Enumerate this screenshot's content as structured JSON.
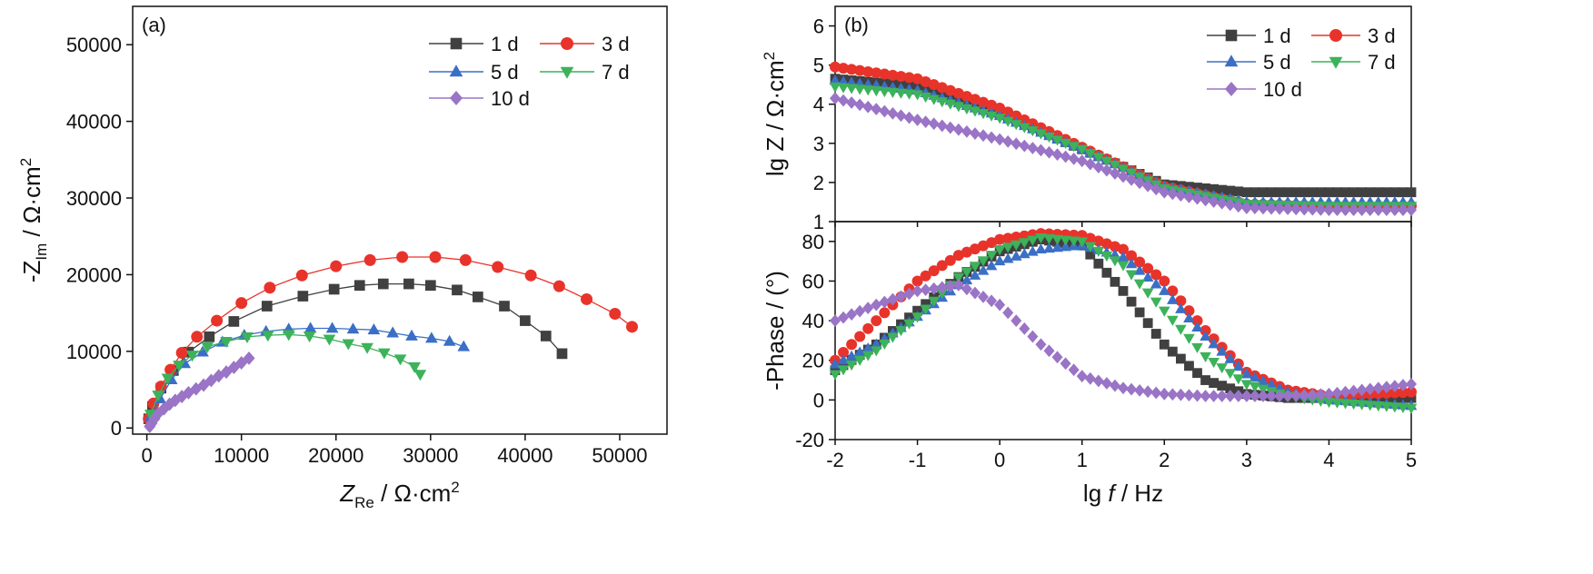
{
  "colors": {
    "1 d": "#404040",
    "3 d": "#e8332b",
    "5 d": "#3b6fc6",
    "7 d": "#3cb25a",
    "10 d": "#9a74c6"
  },
  "chart_data": [
    {
      "panel": "(a)",
      "type": "scatter",
      "xlabel": "Z_Re / Ω·cm^2",
      "ylabel": "-Z_Im / Ω·cm^2",
      "xlim": [
        -1500,
        55000
      ],
      "ylim": [
        -800,
        55000
      ],
      "xticks": [
        "0",
        "10000",
        "20000",
        "30000",
        "40000",
        "50000"
      ],
      "yticks": [
        "0",
        "10000",
        "20000",
        "30000",
        "40000",
        "50000"
      ],
      "legend": "top-right, 3 columns",
      "series": [
        {
          "name": "1 d",
          "marker": "square",
          "fit_line": true,
          "x": [
            200,
            600,
            1500,
            2800,
            4400,
            6600,
            9200,
            12700,
            16500,
            19800,
            22500,
            25000,
            27700,
            30000,
            32800,
            35000,
            37800,
            40000,
            42200,
            43900
          ],
          "y": [
            1200,
            2800,
            5200,
            7500,
            9900,
            11900,
            13900,
            15900,
            17200,
            18100,
            18600,
            18800,
            18800,
            18600,
            18000,
            17100,
            15900,
            14000,
            12000,
            9700
          ]
        },
        {
          "name": "3 d",
          "marker": "circle",
          "fit_line": true,
          "x": [
            200,
            700,
            1500,
            2500,
            3700,
            5300,
            7400,
            10000,
            13000,
            16400,
            20000,
            23600,
            27000,
            30500,
            33700,
            37100,
            40600,
            43600,
            46500,
            49500,
            51300
          ],
          "y": [
            1200,
            3200,
            5400,
            7600,
            9800,
            11900,
            14000,
            16300,
            18300,
            19900,
            21100,
            21900,
            22300,
            22300,
            21900,
            21000,
            19900,
            18500,
            16800,
            14900,
            13200
          ]
        },
        {
          "name": "5 d",
          "marker": "triangle-up",
          "fit_line": true,
          "x": [
            400,
            1400,
            2600,
            4000,
            5900,
            8000,
            10300,
            12600,
            15000,
            17300,
            19600,
            21800,
            24000,
            26000,
            28000,
            30100,
            32000,
            33500
          ],
          "y": [
            1500,
            3800,
            6300,
            8400,
            9900,
            11200,
            12100,
            12600,
            12900,
            13000,
            13000,
            12900,
            12800,
            12400,
            12000,
            11700,
            11300,
            10600
          ]
        },
        {
          "name": "7 d",
          "marker": "triangle-down",
          "fit_line": true,
          "x": [
            400,
            1200,
            2200,
            3400,
            4800,
            6400,
            8400,
            10600,
            12800,
            15000,
            17200,
            19300,
            21300,
            23300,
            25100,
            26800,
            28300,
            28900
          ],
          "y": [
            1800,
            4300,
            6500,
            8200,
            9500,
            10600,
            11300,
            11900,
            12100,
            12200,
            12000,
            11600,
            11000,
            10500,
            9800,
            9000,
            8000,
            7000
          ]
        },
        {
          "name": "10 d",
          "marker": "diamond",
          "fit_line": false,
          "x": [
            300,
            500,
            800,
            1200,
            1800,
            2400,
            3000,
            3700,
            4400,
            5200,
            6000,
            6800,
            7600,
            8400,
            9200,
            10000,
            10800
          ],
          "y": [
            200,
            600,
            1200,
            1900,
            2500,
            3100,
            3600,
            4100,
            4600,
            5100,
            5600,
            6200,
            6800,
            7300,
            7900,
            8500,
            9100
          ]
        }
      ]
    },
    {
      "panel": "(b)",
      "type": "scatter",
      "xlabel": "lg f / Hz",
      "x_ticks": [
        "-2",
        "-1",
        "0",
        "1",
        "2",
        "3",
        "4",
        "5"
      ],
      "subplots": [
        {
          "ylabel": "lg Z / Ω·cm^2",
          "xlim": [
            -2,
            5
          ],
          "ylim": [
            1,
            6.5
          ],
          "yticks": [
            "1",
            "2",
            "3",
            "4",
            "5",
            "6"
          ],
          "legend": "top-right, 2 columns",
          "series": [
            {
              "name": "1 d",
              "marker": "square",
              "x": [
                -2,
                -1,
                0,
                1,
                2,
                3,
                4,
                5
              ],
              "y": [
                4.65,
                4.45,
                3.75,
                2.85,
                1.95,
                1.75,
                1.75,
                1.75
              ]
            },
            {
              "name": "3 d",
              "marker": "circle",
              "x": [
                -2,
                -1,
                0,
                1,
                2,
                3,
                4,
                5
              ],
              "y": [
                4.95,
                4.65,
                3.9,
                2.9,
                1.9,
                1.45,
                1.4,
                1.4
              ]
            },
            {
              "name": "5 d",
              "marker": "triangle-up",
              "x": [
                -2,
                -1,
                0,
                1,
                2,
                3,
                4,
                5
              ],
              "y": [
                4.6,
                4.35,
                3.7,
                2.85,
                1.9,
                1.5,
                1.5,
                1.5
              ]
            },
            {
              "name": "7 d",
              "marker": "triangle-down",
              "x": [
                -2,
                -1,
                0,
                1,
                2,
                3,
                4,
                5
              ],
              "y": [
                4.45,
                4.25,
                3.65,
                2.85,
                1.85,
                1.45,
                1.4,
                1.4
              ]
            },
            {
              "name": "10 d",
              "marker": "diamond",
              "x": [
                -2,
                -1,
                0,
                1,
                2,
                3,
                4,
                5
              ],
              "y": [
                4.15,
                3.6,
                3.1,
                2.55,
                1.75,
                1.35,
                1.3,
                1.3
              ]
            }
          ]
        },
        {
          "ylabel": "-Phase / (°)",
          "xlim": [
            -2,
            5
          ],
          "ylim": [
            -20,
            90
          ],
          "yticks": [
            "-20",
            "0",
            "20",
            "40",
            "60",
            "80"
          ],
          "series": [
            {
              "name": "1 d",
              "marker": "square",
              "x": [
                -2,
                -1.5,
                -1,
                -0.5,
                0,
                0.5,
                1,
                1.5,
                2,
                2.5,
                3,
                3.5,
                4,
                5
              ],
              "y": [
                15,
                28,
                45,
                62,
                75,
                81,
                78,
                55,
                28,
                10,
                3,
                1,
                1,
                1
              ]
            },
            {
              "name": "3 d",
              "marker": "circle",
              "x": [
                -2,
                -1.5,
                -1,
                -0.5,
                0,
                0.5,
                1,
                1.5,
                2,
                2.5,
                3,
                3.5,
                4,
                5
              ],
              "y": [
                20,
                40,
                60,
                73,
                81,
                84,
                83,
                76,
                60,
                35,
                14,
                5,
                2,
                4
              ]
            },
            {
              "name": "5 d",
              "marker": "triangle-up",
              "x": [
                -2,
                -1.5,
                -1,
                -0.5,
                0,
                0.5,
                1,
                1.5,
                2,
                2.5,
                3,
                3.5,
                4,
                5
              ],
              "y": [
                18,
                28,
                42,
                58,
                70,
                76,
                78,
                72,
                55,
                32,
                13,
                4,
                0,
                -3
              ]
            },
            {
              "name": "7 d",
              "marker": "triangle-down",
              "x": [
                -2,
                -1.5,
                -1,
                -0.5,
                0,
                0.5,
                1,
                1.5,
                2,
                2.5,
                3,
                3.5,
                4,
                5
              ],
              "y": [
                13,
                25,
                42,
                62,
                76,
                82,
                80,
                68,
                45,
                22,
                8,
                2,
                -1,
                -4
              ]
            },
            {
              "name": "10 d",
              "marker": "diamond",
              "x": [
                -2,
                -1.5,
                -1,
                -0.5,
                0,
                0.5,
                1,
                1.5,
                2,
                2.5,
                3,
                3.5,
                4,
                5
              ],
              "y": [
                40,
                48,
                55,
                58,
                48,
                28,
                12,
                6,
                3,
                2,
                2,
                2,
                3,
                8
              ]
            }
          ]
        }
      ]
    }
  ]
}
